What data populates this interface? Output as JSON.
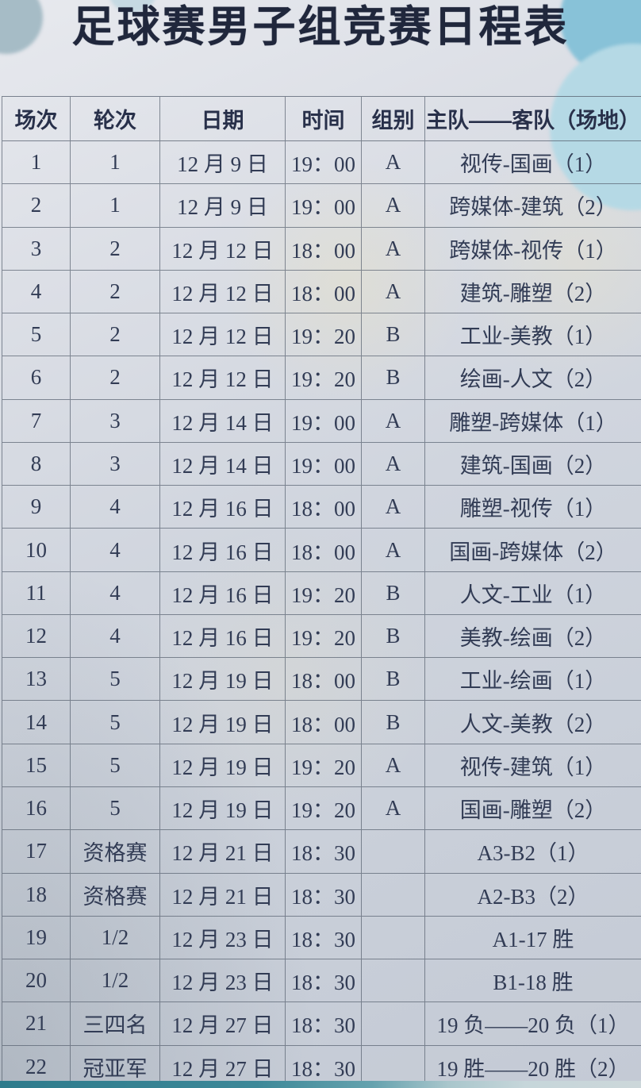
{
  "title": "足球赛男子组竞赛日程表",
  "table": {
    "headers": [
      "场次",
      "轮次",
      "日期",
      "时间",
      "组别",
      "主队——客队（场地）"
    ],
    "col_keys": [
      "match",
      "round",
      "date",
      "time",
      "group",
      "teams"
    ],
    "rows": [
      [
        "1",
        "1",
        "12 月 9 日",
        "19：00",
        "A",
        "视传-国画（1）"
      ],
      [
        "2",
        "1",
        "12 月 9 日",
        "19：00",
        "A",
        "跨媒体-建筑（2）"
      ],
      [
        "3",
        "2",
        "12 月 12 日",
        "18：00",
        "A",
        "跨媒体-视传（1）"
      ],
      [
        "4",
        "2",
        "12 月 12 日",
        "18：00",
        "A",
        "建筑-雕塑（2）"
      ],
      [
        "5",
        "2",
        "12 月 12 日",
        "19：20",
        "B",
        "工业-美教（1）"
      ],
      [
        "6",
        "2",
        "12 月 12 日",
        "19：20",
        "B",
        "绘画-人文（2）"
      ],
      [
        "7",
        "3",
        "12 月 14 日",
        "19：00",
        "A",
        "雕塑-跨媒体（1）"
      ],
      [
        "8",
        "3",
        "12 月 14 日",
        "19：00",
        "A",
        "建筑-国画（2）"
      ],
      [
        "9",
        "4",
        "12 月 16 日",
        "18：00",
        "A",
        "雕塑-视传（1）"
      ],
      [
        "10",
        "4",
        "12 月 16 日",
        "18：00",
        "A",
        "国画-跨媒体（2）"
      ],
      [
        "11",
        "4",
        "12 月 16 日",
        "19：20",
        "B",
        "人文-工业（1）"
      ],
      [
        "12",
        "4",
        "12 月 16 日",
        "19：20",
        "B",
        "美教-绘画（2）"
      ],
      [
        "13",
        "5",
        "12 月 19 日",
        "18：00",
        "B",
        "工业-绘画（1）"
      ],
      [
        "14",
        "5",
        "12 月 19 日",
        "18：00",
        "B",
        "人文-美教（2）"
      ],
      [
        "15",
        "5",
        "12 月 19 日",
        "19：20",
        "A",
        "视传-建筑（1）"
      ],
      [
        "16",
        "5",
        "12 月 19 日",
        "19：20",
        "A",
        "国画-雕塑（2）"
      ],
      [
        "17",
        "资格赛",
        "12 月 21 日",
        "18：30",
        "",
        "A3-B2（1）"
      ],
      [
        "18",
        "资格赛",
        "12 月 21 日",
        "18：30",
        "",
        "A2-B3（2）"
      ],
      [
        "19",
        "1/2",
        "12 月 23 日",
        "18：30",
        "",
        "A1-17 胜"
      ],
      [
        "20",
        "1/2",
        "12 月 23 日",
        "18：30",
        "",
        "B1-18 胜"
      ],
      [
        "21",
        "三四名",
        "12 月 27 日",
        "18：30",
        "",
        "19 负——20 负（1）"
      ],
      [
        "22",
        "冠亚军",
        "12 月 27 日",
        "18：30",
        "",
        "19 胜——20 胜（2）"
      ]
    ]
  },
  "colors": {
    "paper_background": "#d0d5de",
    "text": "#323c55",
    "title": "#20273c",
    "border": "#5a6370",
    "decor_blue_dark": "#88c2d8",
    "decor_blue_light": "#b5d9e5",
    "decor_gray_blue": "#a6bcc6",
    "bottom_strip_teal": "#3d8898"
  }
}
